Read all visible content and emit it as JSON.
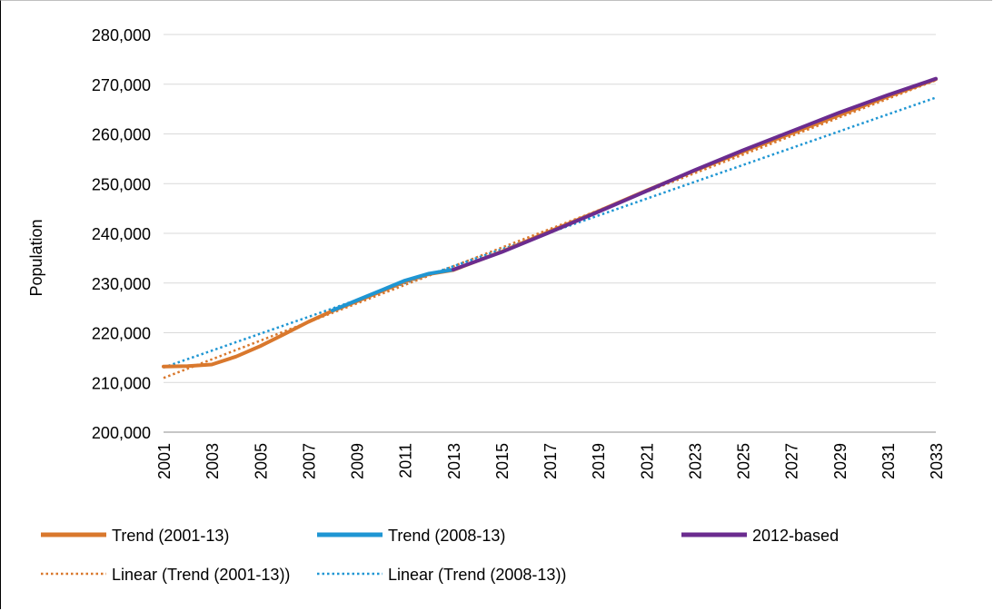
{
  "chart_data": {
    "type": "line",
    "title": "",
    "xlabel": "",
    "ylabel": "Population",
    "ylim": [
      200000,
      280000
    ],
    "yticks": [
      "200,000",
      "210,000",
      "220,000",
      "230,000",
      "240,000",
      "250,000",
      "260,000",
      "270,000",
      "280,000"
    ],
    "xticks": [
      "2001",
      "2003",
      "2005",
      "2007",
      "2009",
      "2011",
      "2013",
      "2015",
      "2017",
      "2019",
      "2021",
      "2023",
      "2025",
      "2027",
      "2029",
      "2031",
      "2033"
    ],
    "xlim": [
      2001,
      2033
    ],
    "grid": true,
    "legend": "bottom",
    "series": [
      {
        "name": "Trend (2001-13)",
        "color": "#D9782D",
        "style": "solid",
        "x": [
          2001,
          2002,
          2003,
          2004,
          2005,
          2006,
          2007,
          2008,
          2009,
          2010,
          2011,
          2012,
          2013,
          2015,
          2017,
          2019,
          2021,
          2023,
          2025,
          2027,
          2029,
          2031,
          2033
        ],
        "values": [
          213200,
          213300,
          213600,
          215200,
          217300,
          219700,
          222200,
          224400,
          226300,
          228300,
          230300,
          231800,
          232600,
          236300,
          240400,
          244400,
          248600,
          252600,
          256400,
          260100,
          263800,
          267500,
          271000
        ]
      },
      {
        "name": "Trend (2008-13)",
        "color": "#1F96D3",
        "style": "solid",
        "x": [
          2008,
          2009,
          2010,
          2011,
          2012,
          2013
        ],
        "values": [
          224500,
          226500,
          228500,
          230500,
          231900,
          232700
        ]
      },
      {
        "name": "2012-based",
        "color": "#6B2C8F",
        "style": "solid",
        "x": [
          2013,
          2015,
          2017,
          2019,
          2021,
          2023,
          2025,
          2027,
          2029,
          2031,
          2033
        ],
        "values": [
          232700,
          236200,
          240200,
          244300,
          248500,
          252700,
          256700,
          260500,
          264300,
          267800,
          271100
        ]
      },
      {
        "name": "Linear (Trend (2001-13))",
        "color": "#D9782D",
        "style": "dotted",
        "x": [
          2001,
          2033
        ],
        "values": [
          210900,
          270800
        ]
      },
      {
        "name": "Linear (Trend (2008-13))",
        "color": "#1F96D3",
        "style": "dotted",
        "x": [
          2001,
          2033
        ],
        "values": [
          213000,
          267300
        ]
      }
    ]
  }
}
